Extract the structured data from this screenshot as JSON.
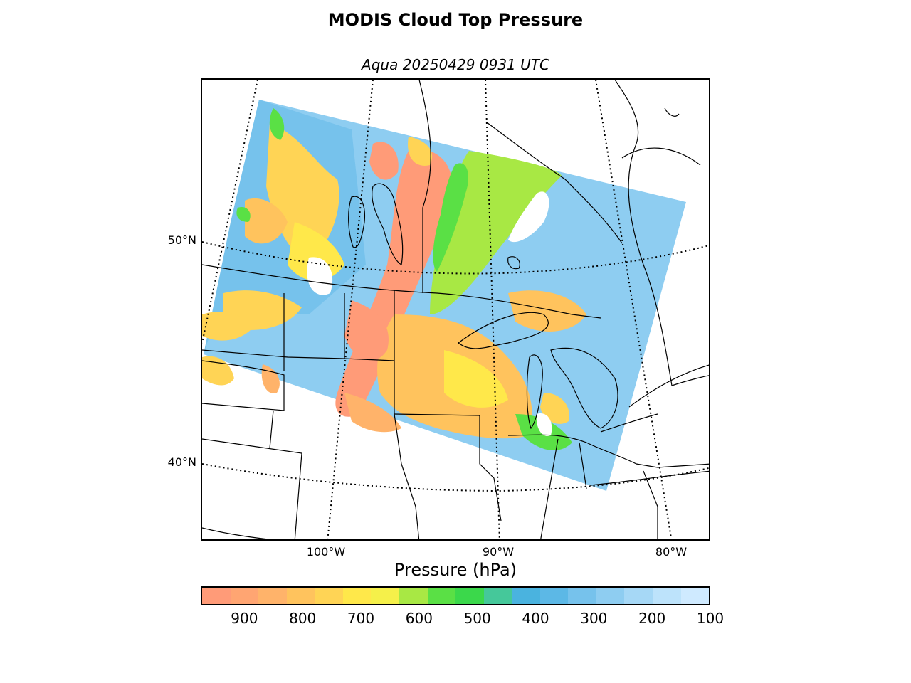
{
  "header": {
    "title": "MODIS Cloud Top Pressure",
    "subtitle": "Aqua 20250429 0931 UTC"
  },
  "map": {
    "latitude_labels": [
      "50°N",
      "40°N"
    ],
    "longitude_labels": [
      "100°W",
      "90°W",
      "80°W"
    ],
    "region": "Upper Midwest / Great Lakes / south-central Canada"
  },
  "colorbar": {
    "label": "Pressure (hPa)",
    "ticks": [
      "900",
      "800",
      "700",
      "600",
      "500",
      "400",
      "300",
      "200",
      "100"
    ],
    "colors": [
      "#ff9b78",
      "#ffa572",
      "#ffb36a",
      "#ffc35d",
      "#ffd455",
      "#ffe84a",
      "#f5f04a",
      "#a8e844",
      "#5ae045",
      "#3bd84b",
      "#45c89a",
      "#4ab3df",
      "#5cb8e6",
      "#76c2ec",
      "#8ecdf1",
      "#a6d8f6",
      "#bde3fb",
      "#cfeaff"
    ],
    "range_hpa": [
      975,
      100
    ]
  }
}
